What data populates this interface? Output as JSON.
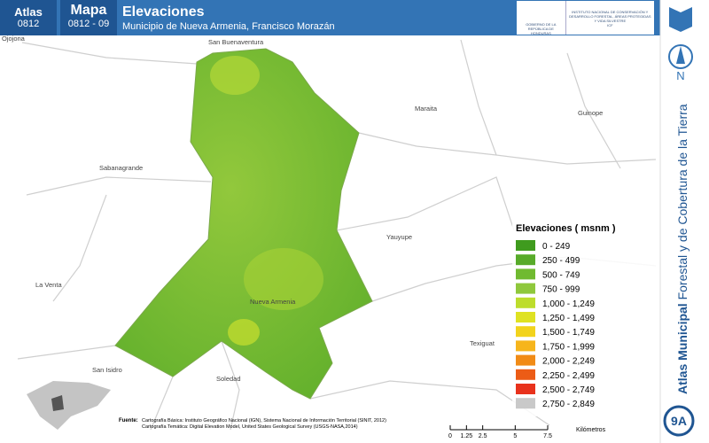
{
  "header": {
    "atlas_label": "Atlas",
    "atlas_code": "0812",
    "map_label": "Mapa",
    "map_code": "0812 - 09",
    "title": "Elevaciones",
    "subtitle": "Municipio de Nueva Armenia, Francisco Morazán",
    "logo_left": "GOBIERNO DE LA REPÚBLICA DE HONDURAS",
    "logo_right": "INSTITUTO NACIONAL DE CONSERVACIÓN Y DESARROLLO FORESTAL, ÁREAS PROTEGIDAS Y VIDA SILVESTRE",
    "logo_right_short": "ICF"
  },
  "places": [
    "Ojojona",
    "San Buenaventura",
    "Maraita",
    "Guinope",
    "Sabanagrande",
    "Yauyupe",
    "La Venta",
    "Nueva Armenia",
    "Texiguat",
    "Soledad",
    "San Isidro"
  ],
  "legend": {
    "title": "Elevaciones ( msnm )",
    "items": [
      {
        "label": "0 - 249",
        "color": "#3f9b1e"
      },
      {
        "label": "250 - 499",
        "color": "#58ab2a"
      },
      {
        "label": "500 - 749",
        "color": "#70ba30"
      },
      {
        "label": "750 - 999",
        "color": "#8fc83c"
      },
      {
        "label": "1,000 - 1,249",
        "color": "#bddd2c"
      },
      {
        "label": "1,250 - 1,499",
        "color": "#dfe222"
      },
      {
        "label": "1,500 - 1,749",
        "color": "#f2d31c"
      },
      {
        "label": "1,750 - 1,999",
        "color": "#f6b51c"
      },
      {
        "label": "2,000 - 2,249",
        "color": "#f18b16"
      },
      {
        "label": "2,250 - 2,499",
        "color": "#ec5c16"
      },
      {
        "label": "2,500 - 2,749",
        "color": "#e8321c"
      },
      {
        "label": "2,750 - 2,849",
        "color": "#c9c9c9"
      }
    ]
  },
  "side": {
    "north": "N",
    "title_bold": "Atlas Municipal",
    "title_rest": "Forestal y de Cobertura de la Tierra",
    "page": "9A"
  },
  "source": {
    "label": "Fuente:",
    "lines": [
      "Cartografía Básica: Instituto Geográfico Nacional (IGN), Sistema Nacional de Información Territorial (SINIT, 2012)",
      "Cartografía Temática: Digital Elevation Model, United States Geological Survey (USGS-NASA,2014)"
    ]
  },
  "scale": {
    "ticks": [
      0,
      1.25,
      2.5,
      5,
      7.5
    ],
    "unit": "Kilómetros"
  }
}
